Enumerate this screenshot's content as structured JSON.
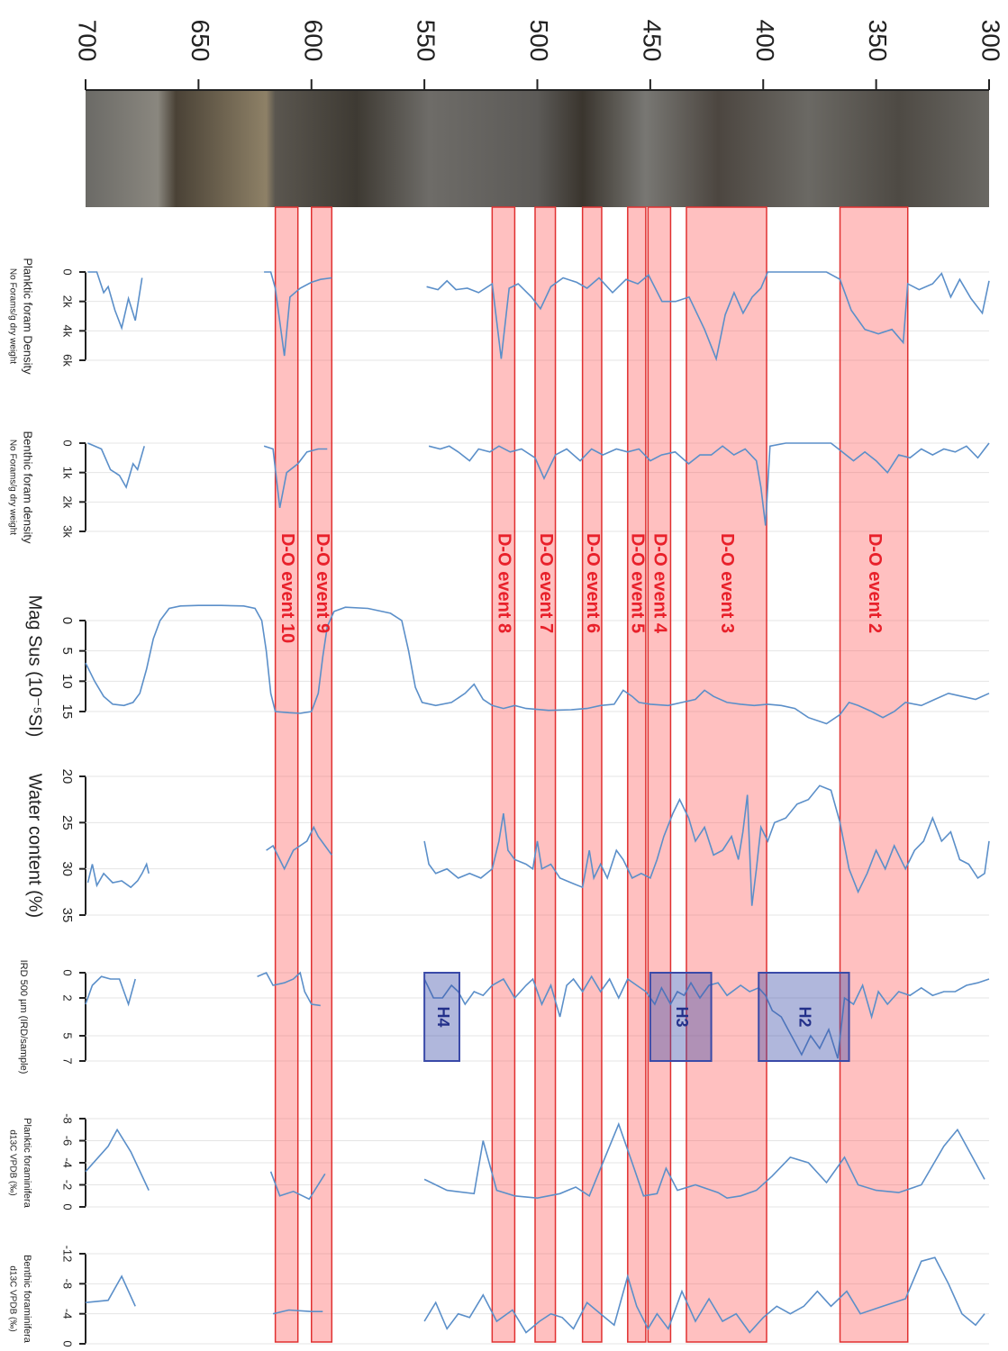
{
  "chart_data": {
    "type": "line",
    "xlim": [
      700,
      300
    ],
    "xticks": [
      700,
      650,
      600,
      550,
      500,
      450,
      400,
      350,
      300
    ],
    "grid": true,
    "line_color": "#5b8fc9",
    "event_color": "#ff5a5a",
    "heinrich_color": "#3a4aa8",
    "events": [
      {
        "label": "D-O event 10",
        "from": 616,
        "to": 606
      },
      {
        "label": "D-O event 9",
        "from": 600,
        "to": 591
      },
      {
        "label": "D-O event 8",
        "from": 520,
        "to": 510
      },
      {
        "label": "D-O event 7",
        "from": 501,
        "to": 492
      },
      {
        "label": "D-O event 6",
        "from": 480,
        "to": 471.5
      },
      {
        "label": "D-O event 5",
        "from": 460,
        "to": 452
      },
      {
        "label": "D-O event 4",
        "from": 451,
        "to": 441
      },
      {
        "label": "D-O event 3",
        "from": 434,
        "to": 398.5
      },
      {
        "label": "D-O event 2",
        "from": 366,
        "to": 336
      }
    ],
    "heinrich": [
      {
        "label": "H4",
        "from": 550,
        "to": 534.5
      },
      {
        "label": "H3",
        "from": 450,
        "to": 423
      },
      {
        "label": "H2",
        "from": 402,
        "to": 362
      }
    ],
    "panels": [
      {
        "labels": [
          "No Forams/g dry weight",
          "Planktic foram Density"
        ],
        "ylim": [
          0,
          6000
        ],
        "yticks": [
          0,
          {
            "value": 2000,
            "label": "2k"
          },
          {
            "value": 4000,
            "label": "4k"
          },
          {
            "value": 6000,
            "label": "6k"
          }
        ],
        "x": [
          699,
          695,
          692,
          690,
          687,
          684,
          681,
          678,
          675,
          null,
          621,
          618,
          616,
          612,
          609.5,
          605,
          600,
          596,
          591,
          null,
          549,
          544,
          540,
          536,
          531,
          526,
          520,
          516,
          512.5,
          508.5,
          502.6,
          498.6,
          494,
          488.6,
          482.6,
          478,
          472.7,
          466.7,
          460.7,
          455.5,
          450.8,
          444.8,
          438.8,
          432.8,
          426,
          420.8,
          416.8,
          412.9,
          408.9,
          404.9,
          401,
          398,
          391,
          381,
          372,
          366,
          361,
          355,
          349,
          343,
          338,
          336,
          331,
          325,
          321,
          317,
          313,
          308,
          303,
          300
        ],
        "values": [
          0,
          0,
          1400,
          1000,
          2600,
          3800,
          1800,
          3300,
          400,
          null,
          0,
          0,
          1100,
          5700,
          1700,
          1100,
          700,
          500,
          400,
          null,
          1000,
          1200,
          600,
          1200,
          1100,
          1400,
          800,
          5900,
          1100,
          800,
          1700,
          2500,
          1000,
          400,
          700,
          1100,
          400,
          1400,
          500,
          800,
          200,
          2000,
          2000,
          1700,
          3900,
          5900,
          2900,
          1400,
          2800,
          1700,
          1100,
          0,
          0,
          0,
          0,
          500,
          2600,
          3900,
          4200,
          3900,
          4800,
          800,
          1200,
          800,
          100,
          1700,
          500,
          1800,
          2800,
          600
        ]
      },
      {
        "labels": [
          "No Forams/g dry weight",
          "Benthic foram density"
        ],
        "ylim": [
          0,
          3000
        ],
        "yticks": [
          0,
          {
            "value": 1000,
            "label": "1k"
          },
          {
            "value": 2000,
            "label": "2k"
          },
          {
            "value": 3000,
            "label": "3k"
          }
        ],
        "x": [
          699,
          693,
          689,
          685,
          682,
          679,
          677,
          674,
          null,
          621,
          617,
          614,
          611,
          606,
          602,
          597,
          593,
          null,
          548,
          543,
          539,
          535,
          530,
          526,
          521,
          517,
          512,
          507,
          501,
          497,
          492,
          487,
          481,
          476,
          471,
          465,
          460,
          455,
          450,
          445,
          439,
          433,
          428,
          423,
          418,
          413,
          408,
          403,
          401,
          399,
          397,
          390,
          380,
          370,
          365,
          360,
          355,
          350,
          345,
          340,
          335,
          330,
          325,
          320,
          315,
          310,
          305,
          302,
          300
        ],
        "values": [
          0,
          200,
          900,
          1100,
          1500,
          700,
          900,
          100,
          null,
          100,
          200,
          2200,
          1000,
          700,
          300,
          200,
          200,
          null,
          100,
          200,
          100,
          300,
          600,
          200,
          300,
          100,
          300,
          200,
          500,
          1200,
          400,
          200,
          600,
          200,
          400,
          200,
          300,
          200,
          600,
          400,
          300,
          700,
          400,
          400,
          100,
          400,
          200,
          600,
          1500,
          2800,
          100,
          0,
          0,
          0,
          300,
          600,
          300,
          600,
          1000,
          400,
          500,
          200,
          400,
          200,
          300,
          100,
          500,
          200,
          0
        ]
      },
      {
        "labels": [
          "Mag Sus (10⁻⁵SI)"
        ],
        "ylim": [
          0,
          15
        ],
        "yticks": [
          0,
          5,
          10,
          15
        ],
        "x": [
          700,
          696,
          692,
          688,
          683,
          679,
          676,
          673,
          670,
          667,
          663,
          658,
          650,
          640,
          630,
          625,
          622,
          620,
          618,
          616,
          610,
          605,
          600,
          597,
          595,
          593,
          590,
          585,
          575,
          565,
          560,
          557,
          554,
          551,
          545,
          538,
          532,
          528,
          524,
          520,
          515,
          510,
          505,
          495,
          485,
          478,
          472,
          466,
          462,
          458,
          455,
          450,
          442,
          436,
          430,
          426,
          422,
          416,
          410,
          404,
          398,
          392,
          386,
          380,
          372,
          366,
          362,
          358,
          352,
          347,
          342,
          337,
          330,
          324,
          318,
          312,
          306,
          300
        ],
        "values": [
          7,
          10,
          12.5,
          13.8,
          14,
          13.5,
          12,
          8,
          3,
          0,
          -2,
          -2.4,
          -2.5,
          -2.5,
          -2.4,
          -2,
          0,
          5,
          12,
          15,
          15.2,
          15.3,
          15,
          12,
          6,
          1,
          -1.5,
          -2.2,
          -2,
          -1.2,
          0,
          5,
          11,
          13.5,
          14,
          13.5,
          12,
          10.5,
          13,
          14,
          14.5,
          14,
          14.5,
          14.8,
          14.7,
          14.5,
          14,
          13.8,
          11.5,
          12.5,
          13.5,
          13.8,
          14,
          13.5,
          13,
          11.5,
          12.5,
          13.5,
          13.8,
          14,
          13.8,
          14,
          14.5,
          16,
          17,
          15.5,
          13.5,
          14,
          15,
          16,
          15,
          13.5,
          14,
          13,
          12,
          12.5,
          13,
          12
        ]
      },
      {
        "labels": [
          "Water content (%)"
        ],
        "ylim": [
          20,
          35
        ],
        "yticks": [
          20,
          25,
          30,
          35
        ],
        "x": [
          699,
          697,
          695,
          692,
          688,
          684,
          680,
          677,
          675,
          673,
          672,
          null,
          620,
          617,
          614,
          612,
          608,
          605,
          602,
          599,
          597,
          594,
          591,
          null,
          550,
          548,
          545,
          540,
          535,
          530,
          525,
          520,
          517,
          515,
          513,
          510,
          505,
          502,
          500,
          498,
          494,
          490,
          485,
          480,
          477,
          475,
          472,
          469,
          465,
          462,
          458,
          454,
          450,
          447,
          444,
          440,
          437,
          433,
          430,
          426,
          422,
          418,
          414,
          411,
          409,
          407,
          405,
          403,
          401,
          398,
          395,
          390,
          385,
          380,
          375,
          370,
          366,
          362,
          358,
          354,
          350,
          346,
          342,
          337,
          333,
          329,
          325,
          321,
          317,
          313,
          309,
          305,
          302,
          300
        ],
        "values": [
          31.5,
          29.5,
          31.8,
          30.5,
          31.5,
          31.3,
          32,
          31.3,
          30.5,
          29.5,
          30.5,
          null,
          28,
          27.5,
          29,
          30,
          28,
          27.5,
          27,
          25.5,
          26.5,
          27.5,
          28.5,
          null,
          27,
          29.5,
          30.5,
          30,
          31,
          30.5,
          31,
          30,
          27,
          24,
          28,
          29,
          29.5,
          30,
          27,
          30,
          29.5,
          31,
          31.5,
          32,
          28,
          31,
          29.5,
          31,
          28,
          29,
          31,
          30.5,
          31,
          29,
          26.5,
          24,
          22.5,
          24.5,
          27,
          25.5,
          28.5,
          28,
          26.5,
          29,
          26,
          22,
          34,
          30,
          25.5,
          27,
          25,
          24.5,
          23,
          22.5,
          21,
          21.5,
          25,
          30,
          32.5,
          30.5,
          28,
          30,
          27.5,
          30,
          28,
          27,
          24.5,
          27,
          26,
          29,
          29.5,
          31,
          30.5,
          27
        ]
      },
      {
        "labels": [
          "IRD 500 µm (IRD/sample)"
        ],
        "ylim": [
          0,
          7
        ],
        "yticks": [
          0,
          2,
          5,
          7
        ],
        "x": [
          700,
          697,
          693,
          689,
          685,
          681,
          678,
          null,
          624,
          620,
          617,
          612,
          608,
          605,
          603,
          600,
          596,
          null,
          550,
          546,
          542,
          538,
          535,
          532,
          528,
          524,
          520,
          515,
          510,
          505,
          502,
          498,
          494,
          490,
          487,
          484,
          480,
          476,
          472,
          468,
          464,
          460,
          456,
          452,
          448,
          445,
          441,
          438,
          435,
          432,
          428,
          424,
          420,
          416,
          410,
          406,
          402,
          399,
          396,
          392,
          389,
          386,
          383,
          379,
          375,
          371,
          367,
          364,
          360,
          356,
          352,
          349,
          345,
          340,
          335,
          330,
          325,
          320,
          315,
          310,
          305,
          300
        ],
        "values": [
          2.5,
          1,
          0.3,
          0.5,
          0.5,
          2.5,
          0.5,
          null,
          0.3,
          0,
          1,
          0.8,
          0.5,
          0,
          1.5,
          2.5,
          2.6,
          null,
          0.5,
          2,
          2,
          1,
          1.5,
          2.5,
          1.5,
          1.8,
          1,
          0.5,
          2,
          1,
          0.5,
          2.5,
          1,
          3.5,
          1,
          0.5,
          1.5,
          0.3,
          1.5,
          0.5,
          2,
          0.5,
          1,
          1.5,
          2.5,
          1.2,
          2.5,
          1.5,
          1.8,
          0.8,
          2,
          1,
          0.8,
          1.8,
          1,
          1.5,
          1.2,
          1.8,
          3,
          3.5,
          4.5,
          5.5,
          6.5,
          5,
          6,
          4.5,
          6.8,
          2,
          2.5,
          1,
          3.5,
          1.5,
          2.5,
          1.5,
          1.8,
          1.2,
          1.8,
          1.5,
          1.5,
          1,
          0.8,
          0.5
        ]
      },
      {
        "labels": [
          "d13C VPDB (‰)",
          "Planktic foraminifera"
        ],
        "ylim": [
          -8,
          0
        ],
        "yticks": [
          -8,
          -6,
          -4,
          -2,
          0
        ],
        "x": [
          700,
          690,
          686,
          680,
          672,
          null,
          618,
          614,
          608,
          601,
          594,
          null,
          550,
          540,
          528,
          524,
          518,
          510,
          500,
          490,
          483,
          477,
          470,
          464,
          458,
          453,
          447,
          443,
          438,
          430,
          420,
          416,
          410,
          403,
          396,
          388,
          380,
          372,
          364,
          358,
          350,
          340,
          330,
          320,
          314,
          306,
          302
        ],
        "values": [
          -3.2,
          -5.5,
          -7,
          -5,
          -1.5,
          null,
          -3.2,
          -1,
          -1.4,
          -0.7,
          -3,
          null,
          -2.5,
          -1.5,
          -1.2,
          -6,
          -1.5,
          -1,
          -0.8,
          -1.2,
          -1.8,
          -1,
          -4.5,
          -7.5,
          -4,
          -1,
          -1.2,
          -3.5,
          -1.5,
          -2,
          -1.3,
          -0.8,
          -1,
          -1.5,
          -2.8,
          -4.5,
          -4,
          -2.2,
          -4.5,
          -2,
          -1.5,
          -1.3,
          -2,
          -5.5,
          -7,
          -4,
          -2.5
        ]
      },
      {
        "labels": [
          "d13C VPDB (‰)",
          "Benthic foraminifera"
        ],
        "ylim": [
          -12,
          0
        ],
        "yticks": [
          -12,
          -8,
          -4,
          0
        ],
        "x": [
          700,
          690,
          684,
          678,
          null,
          617,
          610,
          600,
          595,
          null,
          550,
          545,
          540,
          535,
          530,
          524,
          518,
          511,
          505,
          499,
          494,
          489,
          484,
          478,
          472,
          466,
          460,
          456,
          451,
          447,
          442,
          436,
          430,
          424,
          418,
          412,
          406,
          400,
          394,
          388,
          382,
          376,
          370,
          363,
          357,
          347,
          337,
          330,
          324,
          318,
          312,
          306,
          302
        ],
        "values": [
          -5.5,
          -5.8,
          -9,
          -5,
          null,
          -4,
          -4.5,
          -4.3,
          -4.3,
          null,
          -3,
          -5.5,
          -2,
          -4,
          -3.5,
          -6.5,
          -3,
          -4.5,
          -1.5,
          -3,
          -4,
          -3.5,
          -2,
          -5.5,
          -4,
          -2.5,
          -9,
          -5,
          -2,
          -4,
          -2,
          -7,
          -3,
          -6,
          -3,
          -4,
          -1.5,
          -3.5,
          -5,
          -4,
          -5,
          -7,
          -5,
          -7,
          -4,
          -5,
          -6,
          -11,
          -11.5,
          -8,
          -4,
          -2.5,
          -4
        ]
      }
    ]
  }
}
